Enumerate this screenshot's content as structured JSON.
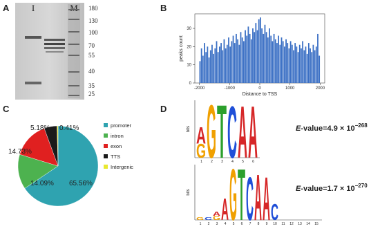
{
  "panels": {
    "a": "A",
    "b": "B",
    "c": "C",
    "d": "D"
  },
  "gel": {
    "lanes": [
      "I",
      "M"
    ],
    "markers": [
      180,
      130,
      100,
      70,
      55,
      40,
      35,
      25
    ]
  },
  "chart_data": [
    {
      "type": "histogram",
      "xlabel": "Distance to TSS",
      "ylabel": "peaks count",
      "color": "#3a6fc4",
      "bins": [
        -2000,
        -1950,
        -1900,
        -1850,
        -1800,
        -1750,
        -1700,
        -1650,
        -1600,
        -1550,
        -1500,
        -1450,
        -1400,
        -1350,
        -1300,
        -1250,
        -1200,
        -1150,
        -1100,
        -1050,
        -1000,
        -950,
        -900,
        -850,
        -800,
        -750,
        -700,
        -650,
        -600,
        -550,
        -500,
        -450,
        -400,
        -350,
        -300,
        -250,
        -200,
        -150,
        -100,
        -50,
        0,
        50,
        100,
        150,
        200,
        250,
        300,
        350,
        400,
        450,
        500,
        550,
        600,
        650,
        700,
        750,
        800,
        850,
        900,
        950,
        1000,
        1050,
        1100,
        1150,
        1200,
        1250,
        1300,
        1350,
        1400,
        1450,
        1500,
        1550,
        1600,
        1650,
        1700,
        1750,
        1800,
        1850,
        1900,
        1950,
        2000
      ],
      "values": [
        12,
        19,
        15,
        22,
        17,
        20,
        14,
        18,
        21,
        16,
        19,
        23,
        17,
        20,
        22,
        18,
        24,
        19,
        21,
        25,
        20,
        23,
        26,
        22,
        27,
        24,
        21,
        28,
        25,
        23,
        29,
        26,
        31,
        27,
        24,
        30,
        28,
        33,
        29,
        35,
        36,
        30,
        27,
        32,
        28,
        25,
        30,
        26,
        23,
        27,
        24,
        22,
        26,
        21,
        25,
        23,
        20,
        24,
        22,
        19,
        23,
        21,
        18,
        22,
        20,
        17,
        21,
        19,
        23,
        18,
        20,
        16,
        22,
        19,
        17,
        21,
        18,
        20,
        27,
        15
      ],
      "xlim": [
        -2150,
        2150
      ],
      "ylim": [
        0,
        38
      ],
      "xticks": [
        -2000,
        -1000,
        0,
        1000,
        2000
      ],
      "yticks": [
        0,
        10,
        20,
        30
      ]
    },
    {
      "type": "pie",
      "categories": [
        "promoter",
        "intron",
        "exon",
        "TTS",
        "Intergenic"
      ],
      "values": [
        65.56,
        14.09,
        14.73,
        5.18,
        0.41
      ],
      "value_labels": [
        "65.56%",
        "14.09%",
        "14.73%",
        "5.18%",
        "0.41%"
      ],
      "colors": [
        "#2fa3b0",
        "#4db24f",
        "#e02020",
        "#1a1a1a",
        "#e8e830"
      ]
    }
  ],
  "logos": [
    {
      "ylabel": "bits",
      "xticks": [
        1,
        2,
        3,
        4,
        5,
        6
      ],
      "columns": [
        [
          {
            "letter": "G",
            "bits": 0.5
          },
          {
            "letter": "A",
            "bits": 0.6
          }
        ],
        [
          {
            "letter": "G",
            "bits": 1.9
          }
        ],
        [
          {
            "letter": "T",
            "bits": 1.9
          }
        ],
        [
          {
            "letter": "C",
            "bits": 1.85
          }
        ],
        [
          {
            "letter": "A",
            "bits": 1.85
          }
        ],
        [
          {
            "letter": "A",
            "bits": 1.85
          }
        ]
      ],
      "evalue": {
        "e": "E",
        "text": "-value=4.9 × 10",
        "exp": "−268"
      }
    },
    {
      "ylabel": "bits",
      "xticks": [
        1,
        2,
        3,
        4,
        5,
        6,
        7,
        8,
        9,
        10,
        11,
        12,
        13,
        14,
        15
      ],
      "columns": [
        [
          {
            "letter": "G",
            "bits": 0.1
          }
        ],
        [
          {
            "letter": "C",
            "bits": 0.1
          }
        ],
        [
          {
            "letter": "G",
            "bits": 0.15
          },
          {
            "letter": "A",
            "bits": 0.15
          }
        ],
        [
          {
            "letter": "A",
            "bits": 0.8
          }
        ],
        [
          {
            "letter": "G",
            "bits": 1.9
          }
        ],
        [
          {
            "letter": "T",
            "bits": 1.9
          }
        ],
        [
          {
            "letter": "C",
            "bits": 1.6
          }
        ],
        [
          {
            "letter": "A",
            "bits": 1.7
          }
        ],
        [
          {
            "letter": "A",
            "bits": 1.6
          }
        ],
        [
          {
            "letter": "C",
            "bits": 0.6
          }
        ],
        [],
        [],
        [],
        [],
        []
      ],
      "evalue": {
        "e": "E",
        "text": "-value=1.7 × 10",
        "exp": "−270"
      }
    }
  ]
}
